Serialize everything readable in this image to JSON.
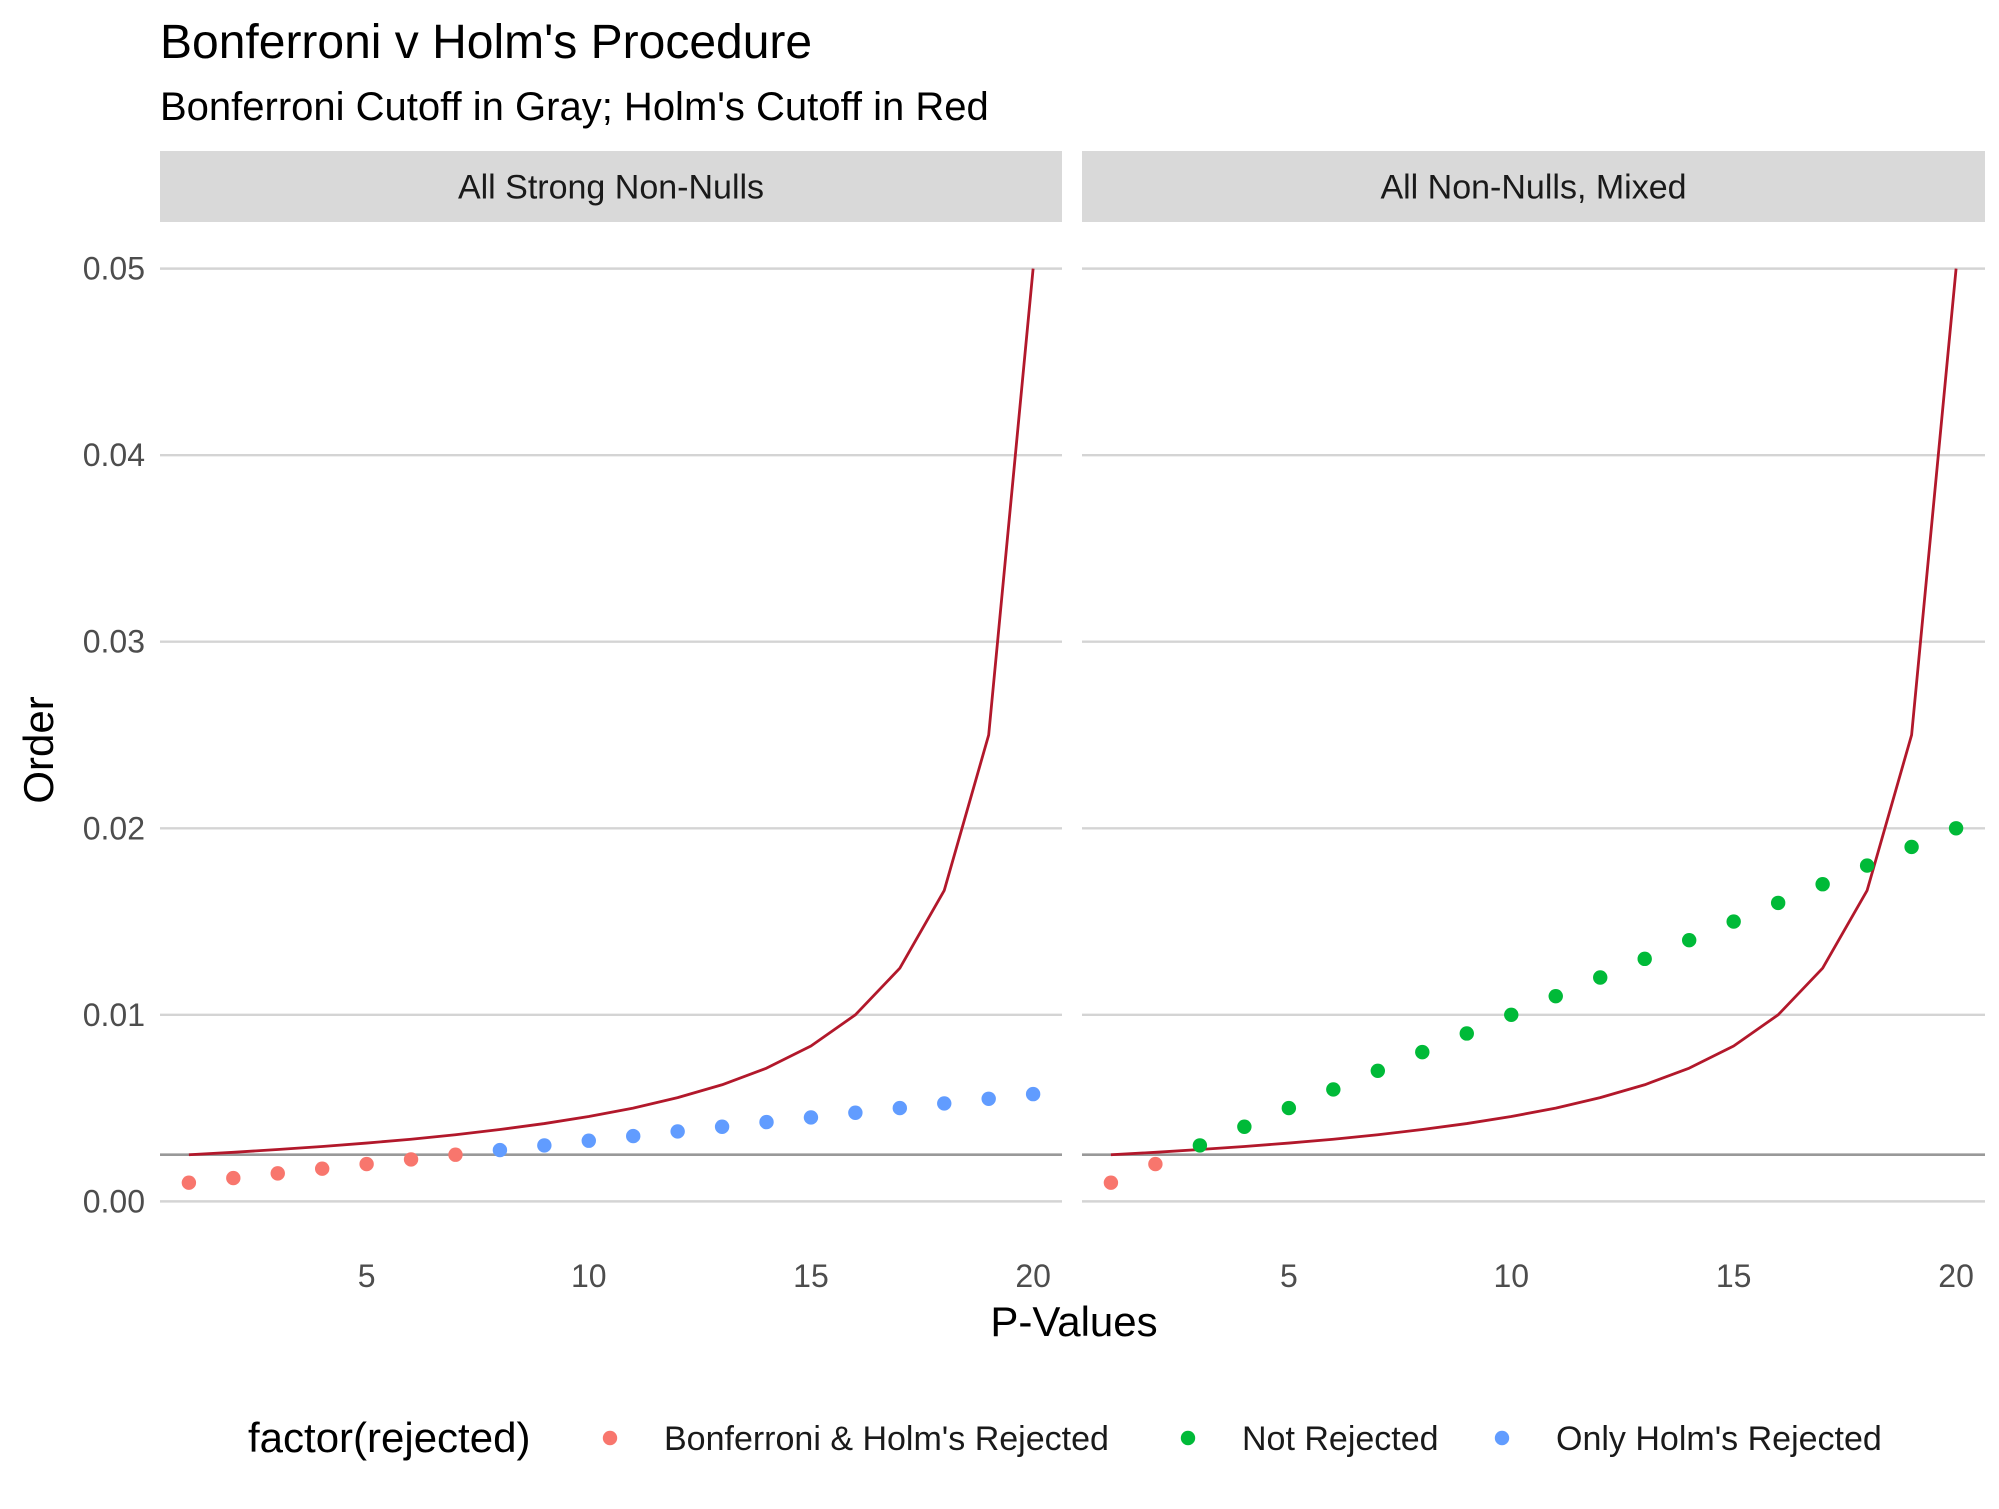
{
  "chart_data": {
    "type": "scatter",
    "title": "Bonferroni v Holm's Procedure",
    "subtitle": "Bonferroni Cutoff in Gray; Holm's Cutoff in Red",
    "xlabel": "P-Values",
    "ylabel": "Order",
    "xlim": [
      0.35,
      20.65
    ],
    "ylim": [
      -0.0025,
      0.0525
    ],
    "x_ticks": [
      5,
      10,
      15,
      20
    ],
    "y_ticks": [
      0.0,
      0.01,
      0.02,
      0.03,
      0.04,
      0.05
    ],
    "y_tick_labels": [
      "0.00",
      "0.01",
      "0.02",
      "0.03",
      "0.04",
      "0.05"
    ],
    "grid": true,
    "legend": {
      "title": "factor(rejected)",
      "position": "bottom",
      "entries": [
        {
          "label": "Bonferroni & Holm's Rejected",
          "color": "#F8766D"
        },
        {
          "label": "Not Rejected",
          "color": "#00BA38"
        },
        {
          "label": "Only Holm's Rejected",
          "color": "#619CFF"
        }
      ]
    },
    "bonferroni_cutoff": 0.0025,
    "bonferroni_color": "#999999",
    "holm_color": "#B2182B",
    "holm_cutoff": {
      "x": [
        1,
        2,
        3,
        4,
        5,
        6,
        7,
        8,
        9,
        10,
        11,
        12,
        13,
        14,
        15,
        16,
        17,
        18,
        19,
        20
      ],
      "y": [
        0.0025,
        0.00263,
        0.00278,
        0.00294,
        0.003125,
        0.00333,
        0.00357,
        0.00385,
        0.00417,
        0.00455,
        0.005,
        0.00556,
        0.00625,
        0.00714,
        0.00833,
        0.01,
        0.0125,
        0.01667,
        0.025,
        0.05
      ]
    },
    "panels": [
      {
        "strip": "All Strong Non-Nulls",
        "points": [
          {
            "x": 1,
            "y": 0.001,
            "group": "Bonferroni & Holm's Rejected"
          },
          {
            "x": 2,
            "y": 0.00125,
            "group": "Bonferroni & Holm's Rejected"
          },
          {
            "x": 3,
            "y": 0.0015,
            "group": "Bonferroni & Holm's Rejected"
          },
          {
            "x": 4,
            "y": 0.00175,
            "group": "Bonferroni & Holm's Rejected"
          },
          {
            "x": 5,
            "y": 0.002,
            "group": "Bonferroni & Holm's Rejected"
          },
          {
            "x": 6,
            "y": 0.00225,
            "group": "Bonferroni & Holm's Rejected"
          },
          {
            "x": 7,
            "y": 0.0025,
            "group": "Bonferroni & Holm's Rejected"
          },
          {
            "x": 8,
            "y": 0.00275,
            "group": "Only Holm's Rejected"
          },
          {
            "x": 9,
            "y": 0.003,
            "group": "Only Holm's Rejected"
          },
          {
            "x": 10,
            "y": 0.00325,
            "group": "Only Holm's Rejected"
          },
          {
            "x": 11,
            "y": 0.0035,
            "group": "Only Holm's Rejected"
          },
          {
            "x": 12,
            "y": 0.00375,
            "group": "Only Holm's Rejected"
          },
          {
            "x": 13,
            "y": 0.004,
            "group": "Only Holm's Rejected"
          },
          {
            "x": 14,
            "y": 0.00425,
            "group": "Only Holm's Rejected"
          },
          {
            "x": 15,
            "y": 0.0045,
            "group": "Only Holm's Rejected"
          },
          {
            "x": 16,
            "y": 0.00475,
            "group": "Only Holm's Rejected"
          },
          {
            "x": 17,
            "y": 0.005,
            "group": "Only Holm's Rejected"
          },
          {
            "x": 18,
            "y": 0.00525,
            "group": "Only Holm's Rejected"
          },
          {
            "x": 19,
            "y": 0.0055,
            "group": "Only Holm's Rejected"
          },
          {
            "x": 20,
            "y": 0.00575,
            "group": "Only Holm's Rejected"
          }
        ]
      },
      {
        "strip": "All Non-Nulls, Mixed",
        "points": [
          {
            "x": 1,
            "y": 0.001,
            "group": "Bonferroni & Holm's Rejected"
          },
          {
            "x": 2,
            "y": 0.002,
            "group": "Bonferroni & Holm's Rejected"
          },
          {
            "x": 3,
            "y": 0.003,
            "group": "Not Rejected"
          },
          {
            "x": 4,
            "y": 0.004,
            "group": "Not Rejected"
          },
          {
            "x": 5,
            "y": 0.005,
            "group": "Not Rejected"
          },
          {
            "x": 6,
            "y": 0.006,
            "group": "Not Rejected"
          },
          {
            "x": 7,
            "y": 0.007,
            "group": "Not Rejected"
          },
          {
            "x": 8,
            "y": 0.008,
            "group": "Not Rejected"
          },
          {
            "x": 9,
            "y": 0.009,
            "group": "Not Rejected"
          },
          {
            "x": 10,
            "y": 0.01,
            "group": "Not Rejected"
          },
          {
            "x": 11,
            "y": 0.011,
            "group": "Not Rejected"
          },
          {
            "x": 12,
            "y": 0.012,
            "group": "Not Rejected"
          },
          {
            "x": 13,
            "y": 0.013,
            "group": "Not Rejected"
          },
          {
            "x": 14,
            "y": 0.014,
            "group": "Not Rejected"
          },
          {
            "x": 15,
            "y": 0.015,
            "group": "Not Rejected"
          },
          {
            "x": 16,
            "y": 0.016,
            "group": "Not Rejected"
          },
          {
            "x": 17,
            "y": 0.017,
            "group": "Not Rejected"
          },
          {
            "x": 18,
            "y": 0.018,
            "group": "Not Rejected"
          },
          {
            "x": 19,
            "y": 0.019,
            "group": "Not Rejected"
          },
          {
            "x": 20,
            "y": 0.02,
            "group": "Not Rejected"
          }
        ]
      }
    ]
  }
}
